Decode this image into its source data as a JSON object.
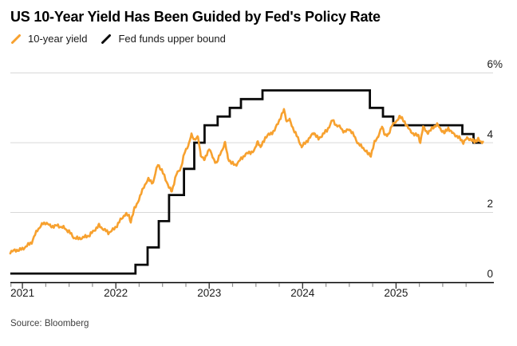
{
  "header": {
    "title": "US 10-Year Yield Has Been Guided by Fed's Policy Rate"
  },
  "legend": [
    {
      "label": "10-year yield",
      "color": "#F7A12F",
      "icon": "orange-slash-icon"
    },
    {
      "label": "Fed funds upper bound",
      "color": "#0a0a0a",
      "icon": "black-slash-icon"
    }
  ],
  "source": {
    "text": "Source: Bloomberg"
  },
  "colors": {
    "accent_orange": "#F7A12F",
    "line_black": "#0a0a0a",
    "gridline": "#d8d8d8",
    "axis": "#000000",
    "tick_major": "#2a2a2a",
    "tick_minor": "#8f8f8f"
  },
  "chart_data": {
    "type": "line",
    "title": "US 10-Year Yield Has Been Guided by Fed's Policy Rate",
    "xlabel": "",
    "ylabel": "",
    "grid": true,
    "legend_position": "top-left",
    "x_axis": {
      "range": [
        2020.87,
        2026.04
      ],
      "major_ticks": [
        2021,
        2022,
        2023,
        2024,
        2025
      ],
      "major_labels": [
        "2021",
        "2022",
        "2023",
        "2024",
        "2025"
      ],
      "minor_interval_years": 0.25
    },
    "y_axis": {
      "range": [
        0,
        6
      ],
      "unit": "%",
      "gridlines": [
        2,
        4,
        6
      ],
      "ticks": [
        {
          "value": 6,
          "label": "6",
          "suffix": "%"
        },
        {
          "value": 4,
          "label": "4",
          "suffix": ""
        },
        {
          "value": 2,
          "label": "2",
          "suffix": ""
        },
        {
          "value": 0,
          "label": "0",
          "suffix": ""
        }
      ]
    },
    "series": [
      {
        "name": "Fed funds upper bound",
        "type": "step",
        "color": "#0a0a0a",
        "steps": [
          [
            2020.87,
            0.25
          ],
          [
            2022.21,
            0.5
          ],
          [
            2022.34,
            1.0
          ],
          [
            2022.46,
            1.75
          ],
          [
            2022.57,
            2.5
          ],
          [
            2022.73,
            3.25
          ],
          [
            2022.84,
            4.0
          ],
          [
            2022.95,
            4.5
          ],
          [
            2023.09,
            4.75
          ],
          [
            2023.22,
            5.0
          ],
          [
            2023.34,
            5.25
          ],
          [
            2023.57,
            5.5
          ],
          [
            2024.72,
            5.0
          ],
          [
            2024.86,
            4.75
          ],
          [
            2024.97,
            4.5
          ],
          [
            2025.71,
            4.25
          ],
          [
            2025.83,
            4.0
          ]
        ],
        "end_x": 2025.92
      },
      {
        "name": "10-year yield",
        "type": "line",
        "color": "#F7A12F",
        "points": [
          [
            2020.87,
            0.88
          ],
          [
            2020.95,
            0.92
          ],
          [
            2021.0,
            0.95
          ],
          [
            2021.05,
            1.05
          ],
          [
            2021.1,
            1.15
          ],
          [
            2021.16,
            1.5
          ],
          [
            2021.22,
            1.68
          ],
          [
            2021.26,
            1.7
          ],
          [
            2021.3,
            1.6
          ],
          [
            2021.38,
            1.62
          ],
          [
            2021.45,
            1.55
          ],
          [
            2021.5,
            1.45
          ],
          [
            2021.55,
            1.28
          ],
          [
            2021.6,
            1.25
          ],
          [
            2021.65,
            1.28
          ],
          [
            2021.72,
            1.35
          ],
          [
            2021.78,
            1.52
          ],
          [
            2021.82,
            1.62
          ],
          [
            2021.87,
            1.52
          ],
          [
            2021.92,
            1.42
          ],
          [
            2021.97,
            1.5
          ],
          [
            2022.0,
            1.58
          ],
          [
            2022.05,
            1.78
          ],
          [
            2022.1,
            1.95
          ],
          [
            2022.14,
            1.9
          ],
          [
            2022.16,
            1.75
          ],
          [
            2022.2,
            2.1
          ],
          [
            2022.26,
            2.45
          ],
          [
            2022.3,
            2.75
          ],
          [
            2022.35,
            2.95
          ],
          [
            2022.4,
            2.85
          ],
          [
            2022.45,
            3.4
          ],
          [
            2022.48,
            3.25
          ],
          [
            2022.52,
            3.05
          ],
          [
            2022.57,
            2.7
          ],
          [
            2022.6,
            2.62
          ],
          [
            2022.65,
            3.1
          ],
          [
            2022.7,
            3.3
          ],
          [
            2022.74,
            3.75
          ],
          [
            2022.78,
            3.95
          ],
          [
            2022.81,
            4.22
          ],
          [
            2022.84,
            4.1
          ],
          [
            2022.88,
            4.15
          ],
          [
            2022.91,
            3.65
          ],
          [
            2022.95,
            3.5
          ],
          [
            2023.0,
            3.85
          ],
          [
            2023.04,
            3.55
          ],
          [
            2023.08,
            3.42
          ],
          [
            2023.13,
            3.75
          ],
          [
            2023.17,
            4.0
          ],
          [
            2023.2,
            3.55
          ],
          [
            2023.24,
            3.42
          ],
          [
            2023.28,
            3.35
          ],
          [
            2023.33,
            3.5
          ],
          [
            2023.38,
            3.65
          ],
          [
            2023.43,
            3.72
          ],
          [
            2023.48,
            3.75
          ],
          [
            2023.52,
            4.05
          ],
          [
            2023.55,
            3.85
          ],
          [
            2023.6,
            4.15
          ],
          [
            2023.65,
            4.25
          ],
          [
            2023.7,
            4.35
          ],
          [
            2023.74,
            4.6
          ],
          [
            2023.78,
            4.8
          ],
          [
            2023.8,
            4.95
          ],
          [
            2023.83,
            4.62
          ],
          [
            2023.86,
            4.65
          ],
          [
            2023.9,
            4.4
          ],
          [
            2023.95,
            4.12
          ],
          [
            2023.99,
            3.88
          ],
          [
            2024.03,
            4.0
          ],
          [
            2024.08,
            4.15
          ],
          [
            2024.12,
            4.3
          ],
          [
            2024.17,
            4.1
          ],
          [
            2024.22,
            4.25
          ],
          [
            2024.26,
            4.35
          ],
          [
            2024.32,
            4.65
          ],
          [
            2024.36,
            4.5
          ],
          [
            2024.4,
            4.45
          ],
          [
            2024.45,
            4.3
          ],
          [
            2024.5,
            4.4
          ],
          [
            2024.55,
            4.2
          ],
          [
            2024.6,
            3.95
          ],
          [
            2024.65,
            3.85
          ],
          [
            2024.7,
            3.68
          ],
          [
            2024.73,
            3.65
          ],
          [
            2024.77,
            4.0
          ],
          [
            2024.81,
            4.2
          ],
          [
            2024.85,
            4.45
          ],
          [
            2024.88,
            4.25
          ],
          [
            2024.92,
            4.2
          ],
          [
            2024.96,
            4.55
          ],
          [
            2025.0,
            4.57
          ],
          [
            2025.04,
            4.78
          ],
          [
            2025.08,
            4.62
          ],
          [
            2025.12,
            4.48
          ],
          [
            2025.16,
            4.3
          ],
          [
            2025.2,
            4.25
          ],
          [
            2025.24,
            4.18
          ],
          [
            2025.26,
            4.02
          ],
          [
            2025.29,
            4.45
          ],
          [
            2025.33,
            4.3
          ],
          [
            2025.36,
            4.32
          ],
          [
            2025.4,
            4.45
          ],
          [
            2025.44,
            4.52
          ],
          [
            2025.48,
            4.38
          ],
          [
            2025.52,
            4.28
          ],
          [
            2025.56,
            4.42
          ],
          [
            2025.6,
            4.28
          ],
          [
            2025.64,
            4.22
          ],
          [
            2025.68,
            4.12
          ],
          [
            2025.72,
            4.02
          ],
          [
            2025.76,
            4.12
          ],
          [
            2025.8,
            4.1
          ],
          [
            2025.84,
            4.02
          ],
          [
            2025.88,
            4.12
          ],
          [
            2025.91,
            3.98
          ],
          [
            2025.93,
            4.03
          ]
        ]
      }
    ]
  }
}
